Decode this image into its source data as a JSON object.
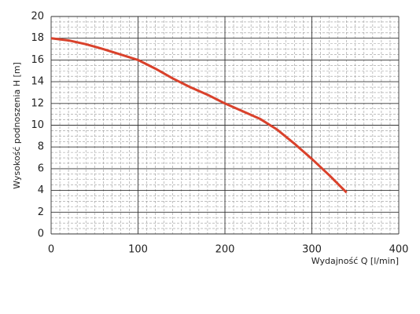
{
  "chart_data": {
    "type": "line",
    "ylabel": "Wysokość podnoszenia H [m]",
    "xlabel": "Wydajność Q [l/min]",
    "x": [
      0,
      20,
      40,
      60,
      80,
      100,
      120,
      140,
      160,
      180,
      200,
      220,
      240,
      260,
      280,
      300,
      320,
      340
    ],
    "series": [
      {
        "color": "#d9412b",
        "values": [
          18,
          17.8,
          17.45,
          17,
          16.5,
          16,
          15.2,
          14.3,
          13.5,
          12.8,
          12,
          11.3,
          10.6,
          9.6,
          8.3,
          6.9,
          5.4,
          3.8
        ]
      }
    ],
    "xlim": [
      0,
      400
    ],
    "xticks": [
      0,
      100,
      200,
      300,
      400
    ],
    "ylim": [
      0,
      20
    ],
    "yticks": [
      0,
      2,
      4,
      6,
      8,
      10,
      12,
      14,
      16,
      18,
      20
    ],
    "xminorticks": [
      10,
      20,
      30,
      40,
      50,
      60,
      70,
      80,
      90,
      110,
      120,
      130,
      140,
      150,
      160,
      170,
      180,
      190,
      210,
      220,
      230,
      240,
      250,
      260,
      270,
      280,
      290,
      310,
      320,
      330,
      340,
      350,
      360,
      370,
      380,
      390
    ],
    "yminorticks": [
      0.5,
      1,
      1.5,
      2.5,
      3,
      3.5,
      4.5,
      5,
      5.5,
      6.5,
      7,
      7.5,
      8.5,
      9,
      9.5,
      10.5,
      11,
      11.5,
      12.5,
      13,
      13.5,
      14.5,
      15,
      15.5,
      16.5,
      17,
      17.5,
      18.5,
      19,
      19.5
    ],
    "grid": true
  }
}
